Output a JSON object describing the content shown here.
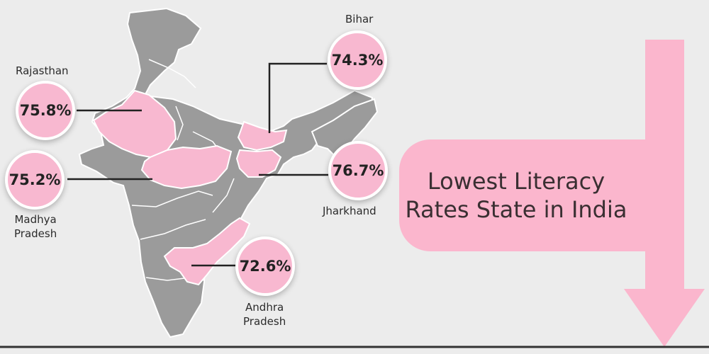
{
  "title": {
    "line1": "Lowest Literacy",
    "line2": "Rates State in India"
  },
  "colors": {
    "background": "#ececec",
    "map_gray": "#9b9b9b",
    "highlight_pink": "#f8b8d0",
    "border": "#ffffff",
    "title_text": "#3a2f32"
  },
  "states": [
    {
      "key": "rajasthan",
      "name": "Rajasthan",
      "rate": "75.8%"
    },
    {
      "key": "madhya-pradesh",
      "name_line1": "Madhya",
      "name_line2": "Pradesh",
      "rate": "75.2%"
    },
    {
      "key": "bihar",
      "name": "Bihar",
      "rate": "74.3%"
    },
    {
      "key": "jharkhand",
      "name": "Jharkhand",
      "rate": "76.7%"
    },
    {
      "key": "andhra-pradesh",
      "name_line1": "Andhra",
      "name_line2": "Pradesh",
      "rate": "72.6%"
    }
  ]
}
